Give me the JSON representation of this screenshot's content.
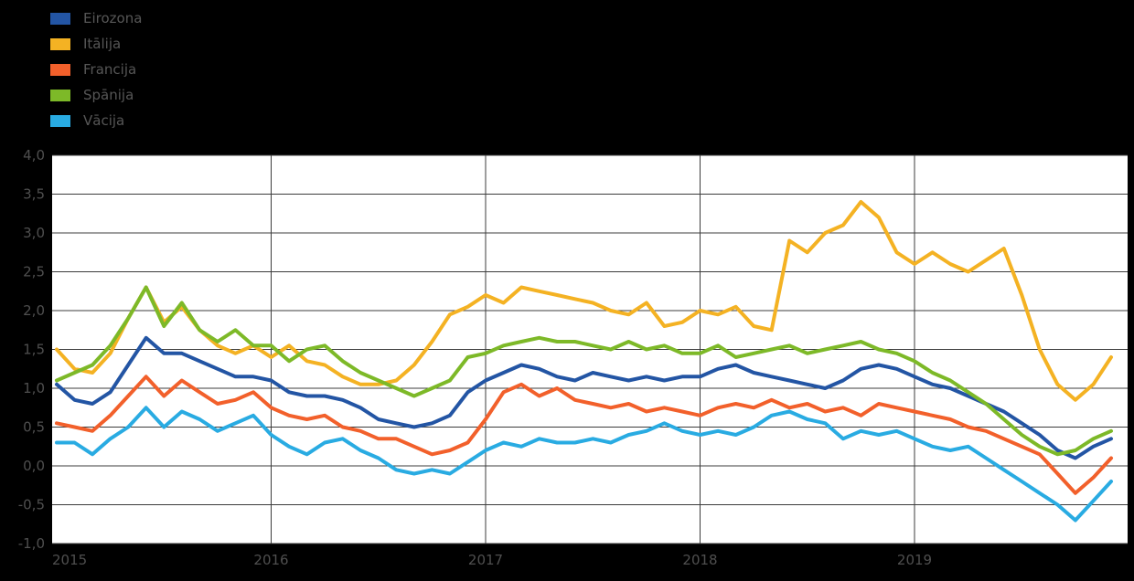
{
  "page": {
    "background": "#000000"
  },
  "legend": {
    "items": [
      {
        "key": "eurozone",
        "label": "Eirozona",
        "color": "#2355a4"
      },
      {
        "key": "italy",
        "label": "Itālija",
        "color": "#f4b223"
      },
      {
        "key": "france",
        "label": "Francija",
        "color": "#f2602b"
      },
      {
        "key": "spain",
        "label": "Spānija",
        "color": "#7db928"
      },
      {
        "key": "germany",
        "label": "Vācija",
        "color": "#29abe2"
      }
    ]
  },
  "chart_data": {
    "type": "line",
    "title": "",
    "xlabel": "",
    "ylabel": "",
    "grid": true,
    "legend_position": "top-left",
    "plot_background": "#ffffff",
    "page_background": "#000000",
    "grid_color": "#3c3c3c",
    "axis_text_color": "#4f4f4f",
    "x": {
      "frequency": "monthly",
      "start": "2015-01",
      "end": "2019-12",
      "tick_labels": [
        "2015",
        "2016",
        "2017",
        "2018",
        "2019"
      ]
    },
    "y": {
      "min": -1.0,
      "max": 4.0,
      "step": 0.5,
      "tick_labels": [
        "4,0",
        "3,5",
        "3,0",
        "2,5",
        "2,0",
        "1,5",
        "1,0",
        "0,5",
        "0,0",
        "-0,5",
        "-1,0"
      ]
    },
    "series": [
      {
        "key": "eurozone",
        "name": "Eirozona",
        "color": "#2355a4",
        "values": [
          1.05,
          0.85,
          0.8,
          0.95,
          1.3,
          1.65,
          1.45,
          1.45,
          1.35,
          1.25,
          1.15,
          1.15,
          1.1,
          0.95,
          0.9,
          0.9,
          0.85,
          0.75,
          0.6,
          0.55,
          0.5,
          0.55,
          0.65,
          0.95,
          1.1,
          1.2,
          1.3,
          1.25,
          1.15,
          1.1,
          1.2,
          1.15,
          1.1,
          1.15,
          1.1,
          1.15,
          1.15,
          1.25,
          1.3,
          1.2,
          1.15,
          1.1,
          1.05,
          1.0,
          1.1,
          1.25,
          1.3,
          1.25,
          1.15,
          1.05,
          1.0,
          0.9,
          0.8,
          0.7,
          0.55,
          0.4,
          0.2,
          0.1,
          0.25,
          0.35
        ]
      },
      {
        "key": "italy",
        "name": "Itālija",
        "color": "#f4b223",
        "values": [
          1.5,
          1.25,
          1.2,
          1.45,
          1.9,
          2.3,
          1.85,
          2.05,
          1.75,
          1.55,
          1.45,
          1.55,
          1.4,
          1.55,
          1.35,
          1.3,
          1.15,
          1.05,
          1.05,
          1.1,
          1.3,
          1.6,
          1.95,
          2.05,
          2.2,
          2.1,
          2.3,
          2.25,
          2.2,
          2.15,
          2.1,
          2.0,
          1.95,
          2.1,
          1.8,
          1.85,
          2.0,
          1.95,
          2.05,
          1.8,
          1.75,
          2.9,
          2.75,
          3.0,
          3.1,
          3.4,
          3.2,
          2.75,
          2.6,
          2.75,
          2.6,
          2.5,
          2.65,
          2.8,
          2.2,
          1.5,
          1.05,
          0.85,
          1.05,
          1.4
        ]
      },
      {
        "key": "france",
        "name": "Francija",
        "color": "#f2602b",
        "values": [
          0.55,
          0.5,
          0.45,
          0.65,
          0.9,
          1.15,
          0.9,
          1.1,
          0.95,
          0.8,
          0.85,
          0.95,
          0.75,
          0.65,
          0.6,
          0.65,
          0.5,
          0.45,
          0.35,
          0.35,
          0.25,
          0.15,
          0.2,
          0.3,
          0.6,
          0.95,
          1.05,
          0.9,
          1.0,
          0.85,
          0.8,
          0.75,
          0.8,
          0.7,
          0.75,
          0.7,
          0.65,
          0.75,
          0.8,
          0.75,
          0.85,
          0.75,
          0.8,
          0.7,
          0.75,
          0.65,
          0.8,
          0.75,
          0.7,
          0.65,
          0.6,
          0.5,
          0.45,
          0.35,
          0.25,
          0.15,
          -0.1,
          -0.35,
          -0.15,
          0.1
        ]
      },
      {
        "key": "spain",
        "name": "Spānija",
        "color": "#7db928",
        "values": [
          1.1,
          1.2,
          1.3,
          1.55,
          1.9,
          2.3,
          1.8,
          2.1,
          1.75,
          1.6,
          1.75,
          1.55,
          1.55,
          1.35,
          1.5,
          1.55,
          1.35,
          1.2,
          1.1,
          1.0,
          0.9,
          1.0,
          1.1,
          1.4,
          1.45,
          1.55,
          1.6,
          1.65,
          1.6,
          1.6,
          1.55,
          1.5,
          1.6,
          1.5,
          1.55,
          1.45,
          1.45,
          1.55,
          1.4,
          1.45,
          1.5,
          1.55,
          1.45,
          1.5,
          1.55,
          1.6,
          1.5,
          1.45,
          1.35,
          1.2,
          1.1,
          0.95,
          0.8,
          0.6,
          0.4,
          0.25,
          0.15,
          0.2,
          0.35,
          0.45
        ]
      },
      {
        "key": "germany",
        "name": "Vācija",
        "color": "#29abe2",
        "values": [
          0.3,
          0.3,
          0.15,
          0.35,
          0.5,
          0.75,
          0.5,
          0.7,
          0.6,
          0.45,
          0.55,
          0.65,
          0.4,
          0.25,
          0.15,
          0.3,
          0.35,
          0.2,
          0.1,
          -0.05,
          -0.1,
          -0.05,
          -0.1,
          0.05,
          0.2,
          0.3,
          0.25,
          0.35,
          0.3,
          0.3,
          0.35,
          0.3,
          0.4,
          0.45,
          0.55,
          0.45,
          0.4,
          0.45,
          0.4,
          0.5,
          0.65,
          0.7,
          0.6,
          0.55,
          0.35,
          0.45,
          0.4,
          0.45,
          0.35,
          0.25,
          0.2,
          0.25,
          0.1,
          -0.05,
          -0.2,
          -0.35,
          -0.5,
          -0.7,
          -0.45,
          -0.2
        ]
      }
    ]
  }
}
